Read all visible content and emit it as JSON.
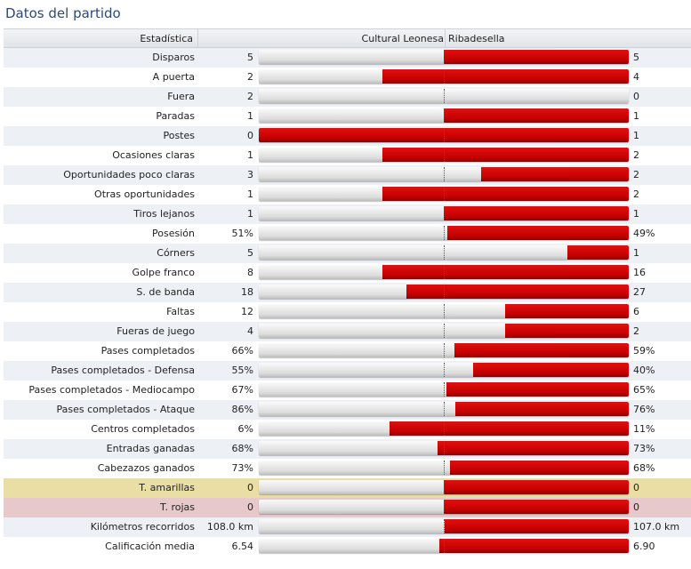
{
  "title": "Datos del partido",
  "header": {
    "stat": "Estadística",
    "home": "Cultural Leonesa",
    "away": "Ribadesella"
  },
  "colors": {
    "away_bar": "#c40000",
    "home_bar": "#d9d9d9",
    "yellow_row": "#e9dfa4",
    "red_row": "#e8c9cb"
  },
  "stats": [
    {
      "label": "Disparos",
      "home": "5",
      "away": "5",
      "home_ratio": 0.5
    },
    {
      "label": "A puerta",
      "home": "2",
      "away": "4",
      "home_ratio": 0.333
    },
    {
      "label": "Fuera",
      "home": "2",
      "away": "0",
      "home_ratio": 1.0
    },
    {
      "label": "Paradas",
      "home": "1",
      "away": "1",
      "home_ratio": 0.5
    },
    {
      "label": "Postes",
      "home": "0",
      "away": "1",
      "home_ratio": 0.0
    },
    {
      "label": "Ocasiones claras",
      "home": "1",
      "away": "2",
      "home_ratio": 0.333
    },
    {
      "label": "Oportunidades poco claras",
      "home": "3",
      "away": "2",
      "home_ratio": 0.6
    },
    {
      "label": "Otras oportunidades",
      "home": "1",
      "away": "2",
      "home_ratio": 0.333
    },
    {
      "label": "Tiros lejanos",
      "home": "1",
      "away": "1",
      "home_ratio": 0.5
    },
    {
      "label": "Posesión",
      "home": "51%",
      "away": "49%",
      "home_ratio": 0.51
    },
    {
      "label": "Córners",
      "home": "5",
      "away": "1",
      "home_ratio": 0.833
    },
    {
      "label": "Golpe franco",
      "home": "8",
      "away": "16",
      "home_ratio": 0.333
    },
    {
      "label": "S. de banda",
      "home": "18",
      "away": "27",
      "home_ratio": 0.4
    },
    {
      "label": "Faltas",
      "home": "12",
      "away": "6",
      "home_ratio": 0.667
    },
    {
      "label": "Fueras de juego",
      "home": "4",
      "away": "2",
      "home_ratio": 0.667
    },
    {
      "label": "Pases completados",
      "home": "66%",
      "away": "59%",
      "home_ratio": 0.528
    },
    {
      "label": "Pases completados - Defensa",
      "home": "55%",
      "away": "40%",
      "home_ratio": 0.579
    },
    {
      "label": "Pases completados - Mediocampo",
      "home": "67%",
      "away": "65%",
      "home_ratio": 0.508
    },
    {
      "label": "Pases completados - Ataque",
      "home": "86%",
      "away": "76%",
      "home_ratio": 0.531
    },
    {
      "label": "Centros completados",
      "home": "6%",
      "away": "11%",
      "home_ratio": 0.353
    },
    {
      "label": "Entradas ganadas",
      "home": "68%",
      "away": "73%",
      "home_ratio": 0.482
    },
    {
      "label": "Cabezazos ganados",
      "home": "73%",
      "away": "68%",
      "home_ratio": 0.518
    },
    {
      "label": "T. amarillas",
      "home": "0",
      "away": "0",
      "home_ratio": 0.5,
      "highlight": "yellow"
    },
    {
      "label": "T. rojas",
      "home": "0",
      "away": "0",
      "home_ratio": 0.5,
      "highlight": "red"
    },
    {
      "label": "Kilómetros recorridos",
      "home": "108.0 km",
      "away": "107.0 km",
      "home_ratio": 0.502
    },
    {
      "label": "Calificación media",
      "home": "6.54",
      "away": "6.90",
      "home_ratio": 0.487
    }
  ]
}
